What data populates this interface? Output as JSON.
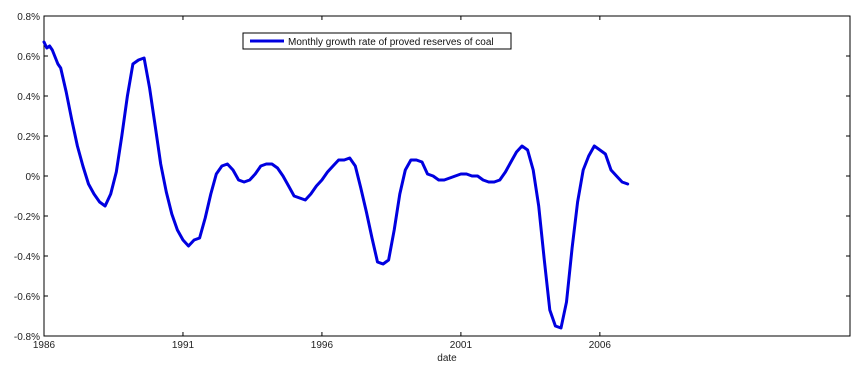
{
  "chart_data": {
    "type": "line",
    "title": "",
    "xlabel": "date",
    "ylabel": "",
    "xlim": [
      1986,
      2015
    ],
    "ylim": [
      -0.8,
      0.8
    ],
    "grid": false,
    "legend_position": "top-center",
    "x_tick_labels": [
      "1986",
      "1991",
      "1996",
      "2001",
      "2006"
    ],
    "x_tick_values": [
      1986,
      1991,
      1996,
      2001,
      2006
    ],
    "y_tick_labels": [
      "0.8%",
      "0.6%",
      "0.4%",
      "0.2%",
      "0%",
      "-0.2%",
      "-0.4%",
      "-0.6%",
      "-0.8%"
    ],
    "y_tick_values": [
      0.8,
      0.6,
      0.4,
      0.2,
      0,
      -0.2,
      -0.4,
      -0.6,
      -0.8
    ],
    "series": [
      {
        "name": "Monthly growth rate of proved reserves of coal",
        "color": "#0000e0",
        "x": [
          1986.0,
          1986.1,
          1986.2,
          1986.3,
          1986.5,
          1986.6,
          1986.8,
          1987.0,
          1987.2,
          1987.4,
          1987.6,
          1987.8,
          1988.0,
          1988.2,
          1988.4,
          1988.6,
          1988.8,
          1989.0,
          1989.2,
          1989.4,
          1989.6,
          1989.8,
          1990.0,
          1990.2,
          1990.4,
          1990.6,
          1990.8,
          1991.0,
          1991.2,
          1991.4,
          1991.6,
          1991.8,
          1992.0,
          1992.2,
          1992.4,
          1992.6,
          1992.8,
          1993.0,
          1993.2,
          1993.4,
          1993.6,
          1993.8,
          1994.0,
          1994.2,
          1994.4,
          1994.6,
          1994.8,
          1995.0,
          1995.2,
          1995.4,
          1995.6,
          1995.8,
          1996.0,
          1996.2,
          1996.4,
          1996.6,
          1996.8,
          1997.0,
          1997.2,
          1997.4,
          1997.6,
          1997.8,
          1998.0,
          1998.2,
          1998.4,
          1998.6,
          1998.8,
          1999.0,
          1999.2,
          1999.4,
          1999.6,
          1999.8,
          2000.0,
          2000.2,
          2000.4,
          2000.6,
          2000.8,
          2001.0,
          2001.2,
          2001.4,
          2001.6,
          2001.8,
          2002.0,
          2002.2,
          2002.4,
          2002.6,
          2002.8,
          2003.0,
          2003.2,
          2003.4,
          2003.6,
          2003.8,
          2004.0,
          2004.2,
          2004.4,
          2004.6,
          2004.8,
          2005.0,
          2005.2,
          2005.4,
          2005.6,
          2005.8,
          2006.0,
          2006.2,
          2006.4,
          2006.6,
          2006.8,
          2007.0
        ],
        "y": [
          0.67,
          0.64,
          0.65,
          0.63,
          0.56,
          0.54,
          0.42,
          0.28,
          0.15,
          0.05,
          -0.04,
          -0.09,
          -0.13,
          -0.15,
          -0.09,
          0.02,
          0.2,
          0.4,
          0.56,
          0.58,
          0.59,
          0.44,
          0.25,
          0.06,
          -0.08,
          -0.19,
          -0.27,
          -0.32,
          -0.35,
          -0.32,
          -0.31,
          -0.21,
          -0.09,
          0.01,
          0.05,
          0.06,
          0.03,
          -0.02,
          -0.03,
          -0.02,
          0.01,
          0.05,
          0.06,
          0.06,
          0.04,
          0.0,
          -0.05,
          -0.1,
          -0.11,
          -0.12,
          -0.09,
          -0.05,
          -0.02,
          0.02,
          0.05,
          0.08,
          0.08,
          0.09,
          0.05,
          -0.06,
          -0.18,
          -0.31,
          -0.43,
          -0.44,
          -0.42,
          -0.27,
          -0.09,
          0.03,
          0.08,
          0.08,
          0.07,
          0.01,
          0.0,
          -0.02,
          -0.02,
          -0.01,
          0.0,
          0.01,
          0.01,
          0.0,
          0.0,
          -0.02,
          -0.03,
          -0.03,
          -0.02,
          0.02,
          0.07,
          0.12,
          0.15,
          0.13,
          0.03,
          -0.15,
          -0.42,
          -0.67,
          -0.75,
          -0.76,
          -0.63,
          -0.36,
          -0.13,
          0.03,
          0.1,
          0.15,
          0.13,
          0.11,
          0.03,
          0.0,
          -0.03,
          -0.04
        ]
      }
    ]
  }
}
